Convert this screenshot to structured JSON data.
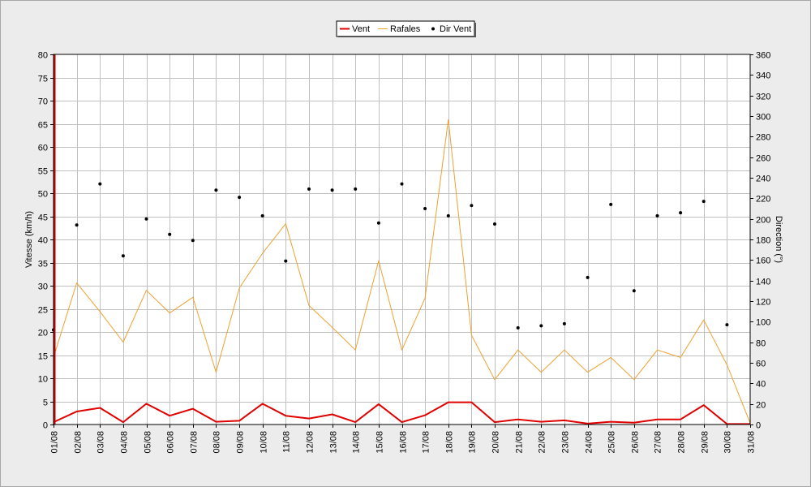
{
  "chart_data": {
    "type": "line",
    "categories": [
      "01/08",
      "02/08",
      "03/08",
      "04/08",
      "05/08",
      "06/08",
      "07/08",
      "08/08",
      "09/08",
      "10/08",
      "11/08",
      "12/08",
      "13/08",
      "14/08",
      "15/08",
      "16/08",
      "17/08",
      "18/08",
      "19/08",
      "20/08",
      "21/08",
      "22/08",
      "23/08",
      "24/08",
      "25/08",
      "26/08",
      "27/08",
      "28/08",
      "29/08",
      "30/08",
      "31/08"
    ],
    "ylabel_left": "Vitesse (km/h)",
    "ylabel_right": "Direction (°)",
    "ylim_left": [
      0,
      80
    ],
    "ylim_right": [
      0,
      360
    ],
    "yticks_left": [
      "0",
      "5",
      "10",
      "15",
      "20",
      "25",
      "30",
      "35",
      "40",
      "45",
      "50",
      "55",
      "60",
      "65",
      "70",
      "75",
      "80"
    ],
    "yticks_right": [
      "0",
      "20",
      "40",
      "60",
      "80",
      "100",
      "120",
      "140",
      "160",
      "180",
      "200",
      "220",
      "240",
      "260",
      "280",
      "300",
      "320",
      "340",
      "360"
    ],
    "grid": true,
    "legend_position": "top-center",
    "series": [
      {
        "name": "Vent",
        "axis": "left",
        "style": "line",
        "color": "#e00000",
        "values": [
          0.5,
          2.8,
          3.6,
          0.5,
          4.5,
          1.9,
          3.4,
          0.6,
          0.8,
          4.5,
          1.9,
          1.3,
          2.2,
          0.5,
          4.4,
          0.5,
          2.0,
          4.8,
          4.8,
          0.5,
          1.1,
          0.6,
          0.9,
          0.2,
          0.6,
          0.4,
          1.1,
          1.1,
          4.2,
          0.1,
          0.1
        ]
      },
      {
        "name": "Rafales",
        "axis": "left",
        "style": "line",
        "color": "#f0a030",
        "values": [
          14.5,
          30.6,
          24.4,
          17.8,
          29.0,
          24.1,
          27.5,
          11.3,
          29.5,
          37.0,
          43.4,
          25.7,
          21.0,
          16.1,
          35.4,
          16.1,
          27.3,
          65.9,
          19.3,
          9.7,
          16.1,
          11.3,
          16.1,
          11.3,
          14.5,
          9.7,
          16.1,
          14.5,
          22.6,
          12.9,
          0.3
        ]
      },
      {
        "name": "Dir Vent",
        "axis": "right",
        "style": "points",
        "color": "#000000",
        "values": [
          92,
          194,
          234,
          164,
          200,
          185,
          179,
          228,
          221,
          203,
          159,
          229,
          228,
          229,
          196,
          234,
          210,
          203,
          213,
          195,
          94,
          96,
          98,
          143,
          214,
          130,
          203,
          206,
          217,
          97,
          null
        ]
      }
    ]
  },
  "legend": {
    "items": [
      {
        "label": "Vent",
        "color": "#e00000",
        "kind": "line"
      },
      {
        "label": "Rafales",
        "color": "#f0a030",
        "kind": "line"
      },
      {
        "label": "Dir Vent",
        "color": "#000000",
        "kind": "dot"
      }
    ]
  }
}
